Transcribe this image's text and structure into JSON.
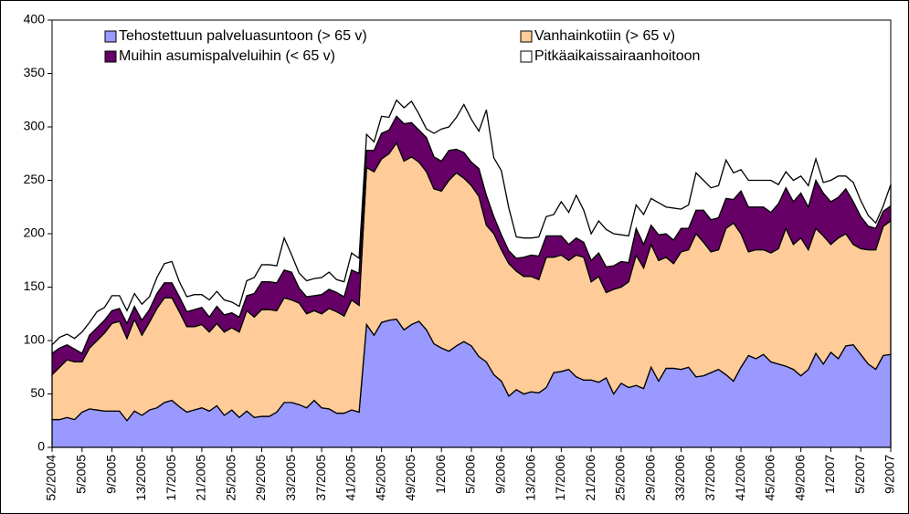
{
  "chart_data": {
    "type": "stacked_area",
    "categories": [
      "52/2004",
      null,
      null,
      null,
      "5/2005",
      null,
      null,
      null,
      "9/2005",
      null,
      null,
      null,
      "13/2005",
      null,
      null,
      null,
      "17/2005",
      null,
      null,
      null,
      "21/2005",
      null,
      null,
      null,
      "25/2005",
      null,
      null,
      null,
      "29/2005",
      null,
      null,
      null,
      "33/2005",
      null,
      null,
      null,
      "37/2005",
      null,
      null,
      null,
      "41/2005",
      null,
      null,
      null,
      "45/2005",
      null,
      null,
      null,
      "49/2005",
      null,
      null,
      null,
      "1/2006",
      null,
      null,
      null,
      "5/2006",
      null,
      null,
      null,
      "9/2006",
      null,
      null,
      null,
      "13/2006",
      null,
      null,
      null,
      "17/2006",
      null,
      null,
      null,
      "21/2006",
      null,
      null,
      null,
      "25/2006",
      null,
      null,
      null,
      "29/2006",
      null,
      null,
      null,
      "33/2006",
      null,
      null,
      null,
      "37/2006",
      null,
      null,
      null,
      "41/2006",
      null,
      null,
      null,
      "45/2006",
      null,
      null,
      null,
      "49/2006",
      null,
      null,
      null,
      "1/2007",
      null,
      null,
      null,
      "5/2007",
      null,
      null,
      null,
      "9/2007"
    ],
    "series": [
      {
        "name": "Tehostettuun palveluasuntoon (> 65 v)",
        "color": "#9999ff",
        "values": [
          26,
          26,
          28,
          26,
          33,
          36,
          35,
          34,
          34,
          34,
          25,
          34,
          30,
          35,
          37,
          42,
          44,
          38,
          33,
          35,
          37,
          34,
          39,
          30,
          35,
          28,
          34,
          28,
          29,
          29,
          33,
          42,
          42,
          40,
          37,
          44,
          37,
          36,
          32,
          32,
          35,
          33,
          115,
          105,
          117,
          119,
          120,
          110,
          115,
          118,
          110,
          97,
          93,
          90,
          95,
          99,
          95,
          85,
          80,
          68,
          62,
          48,
          54,
          50,
          52,
          51,
          56,
          70,
          71,
          73,
          66,
          63,
          63,
          61,
          65,
          50,
          60,
          56,
          58,
          55,
          75,
          62,
          74,
          74,
          73,
          75,
          66,
          67,
          70,
          73,
          68,
          62,
          75,
          86,
          83,
          87,
          80,
          78,
          76,
          73,
          67,
          73,
          88,
          78,
          89,
          83,
          95,
          96,
          87,
          78,
          73,
          86,
          87
        ]
      },
      {
        "name": "Vanhainkotiin (> 65 v)",
        "color": "#ffcc99",
        "values": [
          42,
          49,
          54,
          54,
          47,
          57,
          65,
          73,
          82,
          84,
          77,
          86,
          75,
          82,
          93,
          98,
          96,
          89,
          80,
          78,
          78,
          74,
          77,
          78,
          77,
          80,
          94,
          94,
          100,
          100,
          95,
          98,
          96,
          95,
          88,
          84,
          88,
          94,
          95,
          91,
          103,
          100,
          147,
          153,
          153,
          156,
          165,
          158,
          157,
          149,
          148,
          145,
          147,
          160,
          162,
          153,
          150,
          150,
          128,
          132,
          123,
          124,
          111,
          110,
          108,
          106,
          122,
          108,
          109,
          102,
          114,
          115,
          92,
          99,
          80,
          98,
          90,
          99,
          122,
          113,
          115,
          113,
          104,
          98,
          110,
          110,
          134,
          125,
          113,
          112,
          137,
          148,
          125,
          97,
          102,
          98,
          102,
          108,
          129,
          117,
          129,
          112,
          117,
          120,
          101,
          113,
          105,
          94,
          99,
          107,
          112,
          121,
          125
        ]
      },
      {
        "name": "Muihin asumispalveluihin (< 65 v)",
        "color": "#660066",
        "values": [
          20,
          18,
          14,
          12,
          8,
          12,
          12,
          12,
          12,
          12,
          14,
          12,
          14,
          12,
          14,
          14,
          14,
          14,
          14,
          16,
          16,
          14,
          16,
          16,
          14,
          14,
          14,
          22,
          26,
          26,
          26,
          26,
          26,
          14,
          16,
          14,
          18,
          18,
          18,
          18,
          28,
          30,
          16,
          20,
          24,
          22,
          25,
          35,
          32,
          30,
          32,
          30,
          28,
          28,
          22,
          24,
          22,
          26,
          28,
          16,
          14,
          12,
          12,
          18,
          20,
          22,
          20,
          20,
          18,
          15,
          16,
          14,
          20,
          22,
          24,
          22,
          24,
          18,
          25,
          22,
          18,
          24,
          22,
          22,
          22,
          20,
          22,
          30,
          30,
          30,
          28,
          22,
          40,
          42,
          40,
          40,
          38,
          42,
          38,
          40,
          42,
          40,
          45,
          40,
          40,
          38,
          42,
          40,
          30,
          22,
          20,
          14,
          14
        ]
      },
      {
        "name": "Pitkäaikaissairaanhoitoon",
        "color": "#ffffff",
        "values": [
          8,
          10,
          10,
          10,
          20,
          12,
          15,
          12,
          14,
          12,
          12,
          12,
          15,
          12,
          15,
          18,
          20,
          14,
          14,
          14,
          12,
          16,
          14,
          14,
          10,
          10,
          14,
          15,
          16,
          16,
          16,
          30,
          16,
          14,
          15,
          16,
          16,
          16,
          12,
          14,
          16,
          14,
          15,
          8,
          16,
          12,
          15,
          15,
          20,
          15,
          8,
          22,
          30,
          22,
          30,
          45,
          40,
          35,
          80,
          55,
          60,
          40,
          20,
          18,
          16,
          18,
          18,
          20,
          32,
          30,
          40,
          30,
          25,
          30,
          35,
          30,
          25,
          25,
          22,
          28,
          25,
          30,
          25,
          30,
          18,
          22,
          35,
          28,
          30,
          30,
          36,
          25,
          20,
          25,
          25,
          25,
          30,
          18,
          15,
          20,
          16,
          20,
          20,
          10,
          20,
          20,
          12,
          18,
          15,
          10,
          5,
          5,
          20
        ]
      }
    ],
    "ylim": [
      0,
      400
    ],
    "yticks": [
      0,
      50,
      100,
      150,
      200,
      250,
      300,
      350,
      400
    ],
    "legend": "top"
  }
}
